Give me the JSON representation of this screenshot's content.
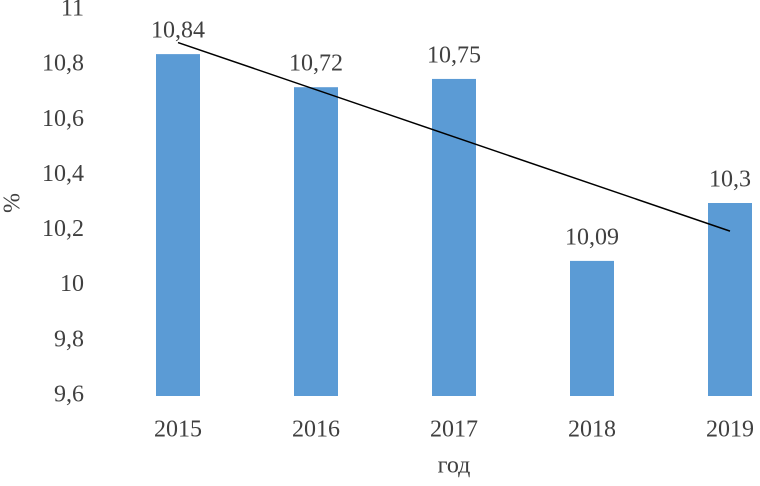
{
  "chart_data": {
    "type": "bar",
    "xlabel": "год",
    "ylabel": "%",
    "categories": [
      "2015",
      "2016",
      "2017",
      "2018",
      "2019"
    ],
    "values": [
      10.84,
      10.72,
      10.75,
      10.09,
      10.3
    ],
    "value_labels": [
      "10,84",
      "10,72",
      "10,75",
      "10,09",
      "10,3"
    ],
    "color": "#5b9bd5",
    "ylim": [
      9.6,
      11
    ],
    "yticks": [
      {
        "value": 9.6,
        "label": "9,6"
      },
      {
        "value": 9.8,
        "label": "9,8"
      },
      10,
      {
        "value": 10.2,
        "label": "10,2"
      },
      {
        "value": 10.4,
        "label": "10,4"
      },
      {
        "value": 10.6,
        "label": "10,6"
      },
      {
        "value": 10.8,
        "label": "10,8"
      },
      11
    ],
    "trendline": "linear",
    "trendline_color": "#000000",
    "grid": false
  }
}
